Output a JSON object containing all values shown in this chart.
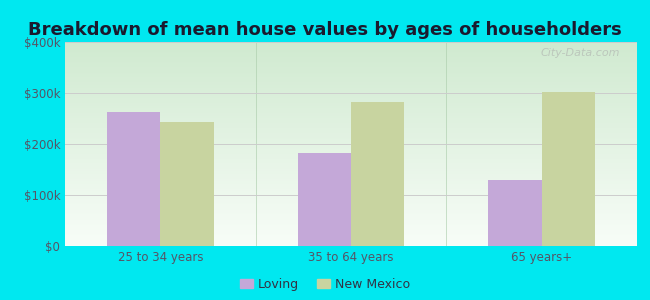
{
  "title": "Breakdown of mean house values by ages of householders",
  "categories": [
    "25 to 34 years",
    "35 to 64 years",
    "65 years+"
  ],
  "loving_values": [
    262000,
    183000,
    130000
  ],
  "newmexico_values": [
    243000,
    283000,
    302000
  ],
  "loving_color": "#c4a8d8",
  "newmexico_color": "#c8d4a0",
  "ylim": [
    0,
    400000
  ],
  "yticks": [
    0,
    100000,
    200000,
    300000,
    400000
  ],
  "ytick_labels": [
    "$0",
    "$100k",
    "$200k",
    "$300k",
    "$400k"
  ],
  "legend_labels": [
    "Loving",
    "New Mexico"
  ],
  "background_outer": "#00e8f0",
  "bar_width": 0.28,
  "title_fontsize": 13,
  "watermark": "City-Data.com"
}
